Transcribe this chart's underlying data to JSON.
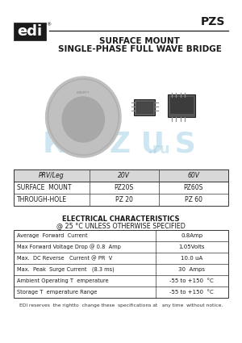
{
  "title_series": "PZS",
  "company": "edi",
  "subtitle1": "SURFACE MOUNT",
  "subtitle2": "SINGLE-PHASE FULL WAVE BRIDGE",
  "table1_headers": [
    "PRV/Leg",
    "20V",
    "60V"
  ],
  "table1_rows": [
    [
      "SURFACE  MOUNT",
      "PZ20S",
      "PZ60S"
    ],
    [
      "THROUGH-HOLE",
      "PZ 20",
      "PZ 60"
    ]
  ],
  "elec_title1": "ELECTRICAL CHARACTERISTICS",
  "elec_title2": "@ 25 °C UNLESS OTHERWISE SPECIFIED",
  "elec_rows": [
    [
      "Average  Forward  Current",
      "0.8Amp"
    ],
    [
      "Max Forward Voltage Drop @ 0.8  Amp",
      "1.05Volts"
    ],
    [
      "Max.  DC Reverse   Current @ PR  V",
      "10.0 uA"
    ],
    [
      "Max.  Peak  Surge Current   (8.3 ms)",
      "30  Amps"
    ],
    [
      "Ambient Operating T  emperature",
      "-55 to +150  °C"
    ],
    [
      "Storage T  emperature Range",
      "-55 to +150  °C"
    ]
  ],
  "footer": "EDI reserves  the rightto  change these  specifications at   any time  without notice.",
  "bg_color": "#ffffff",
  "text_color": "#000000",
  "table_border_color": "#333333",
  "header_bg": "#d8d8d8"
}
